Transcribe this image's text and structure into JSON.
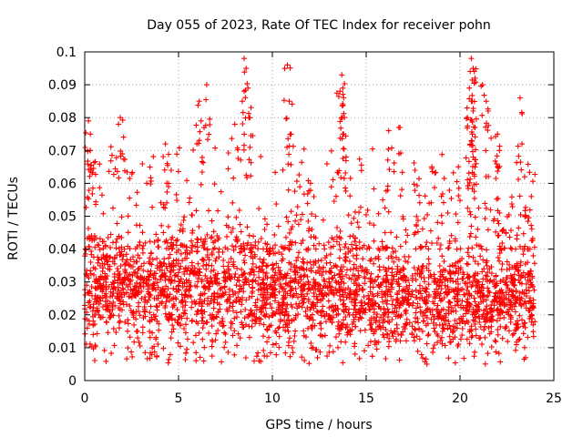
{
  "chart_data": {
    "type": "scatter",
    "title": "Day 055 of 2023, Rate Of TEC Index for receiver pohn",
    "xlabel": "GPS time / hours",
    "ylabel": "ROTI / TECUs",
    "xlim": [
      0,
      25
    ],
    "ylim": [
      0,
      0.1
    ],
    "xticks": [
      0,
      5,
      10,
      15,
      20,
      25
    ],
    "xtick_labels": [
      "0",
      "5",
      "10",
      "15",
      "20",
      "25"
    ],
    "yticks": [
      0,
      0.01,
      0.02,
      0.03,
      0.04,
      0.05,
      0.06,
      0.07,
      0.08,
      0.09,
      0.1
    ],
    "ytick_labels": [
      "0",
      "0.01",
      "0.02",
      "0.03",
      "0.04",
      "0.05",
      "0.06",
      "0.07",
      "0.08",
      "0.09",
      "0.1"
    ],
    "grid": true,
    "marker": "+",
    "series": [
      {
        "name": "ROTI",
        "color": "#ff0000",
        "x_range": [
          0,
          24
        ],
        "typical_range": [
          0.01,
          0.045
        ],
        "notable_points": [
          {
            "x": 0.2,
            "y": 0.079
          },
          {
            "x": 0.3,
            "y": 0.075
          },
          {
            "x": 0.3,
            "y": 0.07
          },
          {
            "x": 1.9,
            "y": 0.08
          },
          {
            "x": 1.8,
            "y": 0.078
          },
          {
            "x": 2.0,
            "y": 0.069
          },
          {
            "x": 4.3,
            "y": 0.072
          },
          {
            "x": 4.4,
            "y": 0.066
          },
          {
            "x": 6.1,
            "y": 0.085
          },
          {
            "x": 6.2,
            "y": 0.079
          },
          {
            "x": 6.5,
            "y": 0.09
          },
          {
            "x": 8.5,
            "y": 0.098
          },
          {
            "x": 8.6,
            "y": 0.095
          },
          {
            "x": 8.7,
            "y": 0.089
          },
          {
            "x": 8.4,
            "y": 0.085
          },
          {
            "x": 8.8,
            "y": 0.08
          },
          {
            "x": 8.0,
            "y": 0.078
          },
          {
            "x": 10.8,
            "y": 0.096
          },
          {
            "x": 10.9,
            "y": 0.085
          },
          {
            "x": 11.0,
            "y": 0.075
          },
          {
            "x": 13.7,
            "y": 0.093
          },
          {
            "x": 13.6,
            "y": 0.088
          },
          {
            "x": 13.8,
            "y": 0.086
          },
          {
            "x": 13.7,
            "y": 0.08
          },
          {
            "x": 13.8,
            "y": 0.075
          },
          {
            "x": 16.2,
            "y": 0.076
          },
          {
            "x": 16.8,
            "y": 0.077
          },
          {
            "x": 17.6,
            "y": 0.064
          },
          {
            "x": 18.5,
            "y": 0.065
          },
          {
            "x": 20.6,
            "y": 0.098
          },
          {
            "x": 20.7,
            "y": 0.095
          },
          {
            "x": 20.8,
            "y": 0.092
          },
          {
            "x": 20.5,
            "y": 0.089
          },
          {
            "x": 20.6,
            "y": 0.085
          },
          {
            "x": 20.7,
            "y": 0.082
          },
          {
            "x": 20.4,
            "y": 0.08
          },
          {
            "x": 20.8,
            "y": 0.077
          },
          {
            "x": 20.6,
            "y": 0.073
          },
          {
            "x": 20.7,
            "y": 0.068
          },
          {
            "x": 21.2,
            "y": 0.09
          },
          {
            "x": 21.5,
            "y": 0.082
          },
          {
            "x": 21.4,
            "y": 0.085
          },
          {
            "x": 22.0,
            "y": 0.075
          },
          {
            "x": 22.1,
            "y": 0.07
          },
          {
            "x": 22.0,
            "y": 0.065
          },
          {
            "x": 23.2,
            "y": 0.086
          },
          {
            "x": 23.8,
            "y": 0.056
          },
          {
            "x": 23.5,
            "y": 0.05
          }
        ]
      }
    ]
  }
}
